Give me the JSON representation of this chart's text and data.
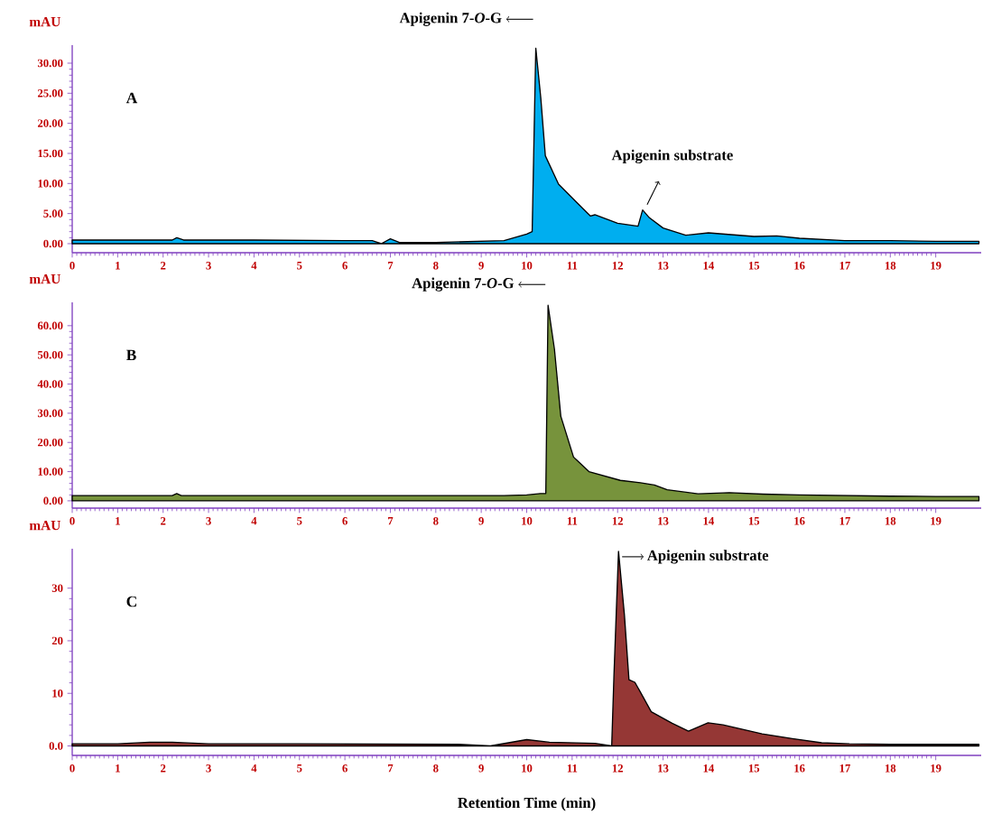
{
  "chart_data": [
    {
      "type": "area",
      "title": "A",
      "ylabel": "mAU",
      "x": [
        0,
        1,
        2.2,
        2.3,
        2.45,
        4,
        6,
        6.6,
        6.8,
        7.0,
        7.2,
        8,
        9.5,
        10.0,
        10.12,
        10.2,
        10.31,
        10.41,
        10.7,
        11.12,
        11.4,
        11.5,
        12.0,
        12.45,
        12.55,
        12.7,
        13.0,
        13.5,
        14.0,
        14.5,
        15.0,
        15.5,
        16.0,
        17.0,
        18.0,
        19.0,
        19.95
      ],
      "series": [
        {
          "color": "#00aeef",
          "values": [
            0.6,
            0.6,
            0.6,
            1.0,
            0.6,
            0.6,
            0.5,
            0.5,
            0.0,
            0.8,
            0.2,
            0.2,
            0.5,
            1.6,
            2.0,
            32.5,
            24.2,
            14.6,
            9.9,
            6.7,
            4.6,
            4.8,
            3.4,
            2.9,
            5.6,
            4.3,
            2.6,
            1.4,
            1.8,
            1.5,
            1.2,
            1.3,
            0.9,
            0.5,
            0.5,
            0.4,
            0.4
          ]
        }
      ],
      "xlim": [
        0,
        20
      ],
      "ylim": [
        -1.5,
        33
      ],
      "xticks": [
        0,
        1,
        2,
        3,
        4,
        5,
        6,
        7,
        8,
        9,
        10,
        11,
        12,
        13,
        14,
        15,
        16,
        17,
        18,
        19
      ],
      "yticks": [
        {
          "value": 0,
          "label": "0.00"
        },
        {
          "value": 5,
          "label": "5.00"
        },
        {
          "value": 10,
          "label": "10.00"
        },
        {
          "value": 15,
          "label": "15.00"
        },
        {
          "value": 20,
          "label": "20.00"
        },
        {
          "value": 25,
          "label": "25.00"
        },
        {
          "value": 30,
          "label": "30.00"
        }
      ],
      "annotations": [
        {
          "text": "Apigenin 7-*O*-G",
          "x": 10.2,
          "y": 32.5
        },
        {
          "text": "Apigenin substrate",
          "x": 12.55,
          "y": 5.6
        }
      ]
    },
    {
      "type": "area",
      "title": "B",
      "ylabel": "mAU",
      "x": [
        0,
        2.2,
        2.3,
        2.4,
        9.5,
        10.0,
        10.3,
        10.42,
        10.47,
        10.61,
        10.75,
        11.03,
        11.37,
        12.06,
        12.5,
        12.81,
        13.09,
        13.77,
        14.46,
        15.2,
        16,
        17,
        18,
        19,
        19.95
      ],
      "series": [
        {
          "color": "#77933c",
          "values": [
            1.8,
            1.8,
            2.5,
            1.8,
            1.8,
            2.0,
            2.5,
            2.5,
            67,
            52,
            29,
            15,
            10,
            7,
            6.2,
            5.4,
            3.8,
            2.4,
            2.8,
            2.3,
            2.0,
            1.8,
            1.6,
            1.5,
            1.5
          ]
        }
      ],
      "xlim": [
        0,
        20
      ],
      "ylim": [
        -2.5,
        68
      ],
      "xticks": [
        0,
        1,
        2,
        3,
        4,
        5,
        6,
        7,
        8,
        9,
        10,
        11,
        12,
        13,
        14,
        15,
        16,
        17,
        18,
        19
      ],
      "yticks": [
        {
          "value": 0,
          "label": "0.00"
        },
        {
          "value": 10,
          "label": "10.00"
        },
        {
          "value": 20,
          "label": "20.00"
        },
        {
          "value": 30,
          "label": "30.00"
        },
        {
          "value": 40,
          "label": "40.00"
        },
        {
          "value": 50,
          "label": "50.00"
        },
        {
          "value": 60,
          "label": "60.00"
        }
      ],
      "annotations": [
        {
          "text": "Apigenin 7-*O*-G",
          "x": 10.47,
          "y": 67
        }
      ]
    },
    {
      "type": "area",
      "title": "C",
      "ylabel": "mAU",
      "xlabel": "Retention Time (min)",
      "x": [
        0,
        1,
        1.7,
        2.2,
        3,
        5,
        8.5,
        9.2,
        9.6,
        10.0,
        10.5,
        11.5,
        11.87,
        11.92,
        12.02,
        12.15,
        12.25,
        12.38,
        12.51,
        12.74,
        13.2,
        13.56,
        13.99,
        14.32,
        15.18,
        15.84,
        16.49,
        17.1,
        18,
        19,
        19.95
      ],
      "series": [
        {
          "color": "#953735",
          "values": [
            0.4,
            0.4,
            0.7,
            0.7,
            0.4,
            0.4,
            0.3,
            0.0,
            0.6,
            1.2,
            0.7,
            0.5,
            0.0,
            13.5,
            37,
            24.9,
            12.6,
            12.1,
            10.1,
            6.5,
            4.3,
            2.8,
            4.4,
            4.0,
            2.3,
            1.4,
            0.6,
            0.4,
            0.3,
            0.3,
            0.3
          ]
        }
      ],
      "xlim": [
        0,
        20
      ],
      "ylim": [
        -1.8,
        37.5
      ],
      "xticks": [
        0,
        1,
        2,
        3,
        4,
        5,
        6,
        7,
        8,
        9,
        10,
        11,
        12,
        13,
        14,
        15,
        16,
        17,
        18,
        19
      ],
      "yticks": [
        {
          "value": 0,
          "label": "0.0"
        },
        10,
        20,
        30
      ],
      "annotations": [
        {
          "text": "Apigenin substrate",
          "x": 12.02,
          "y": 37
        }
      ]
    }
  ]
}
